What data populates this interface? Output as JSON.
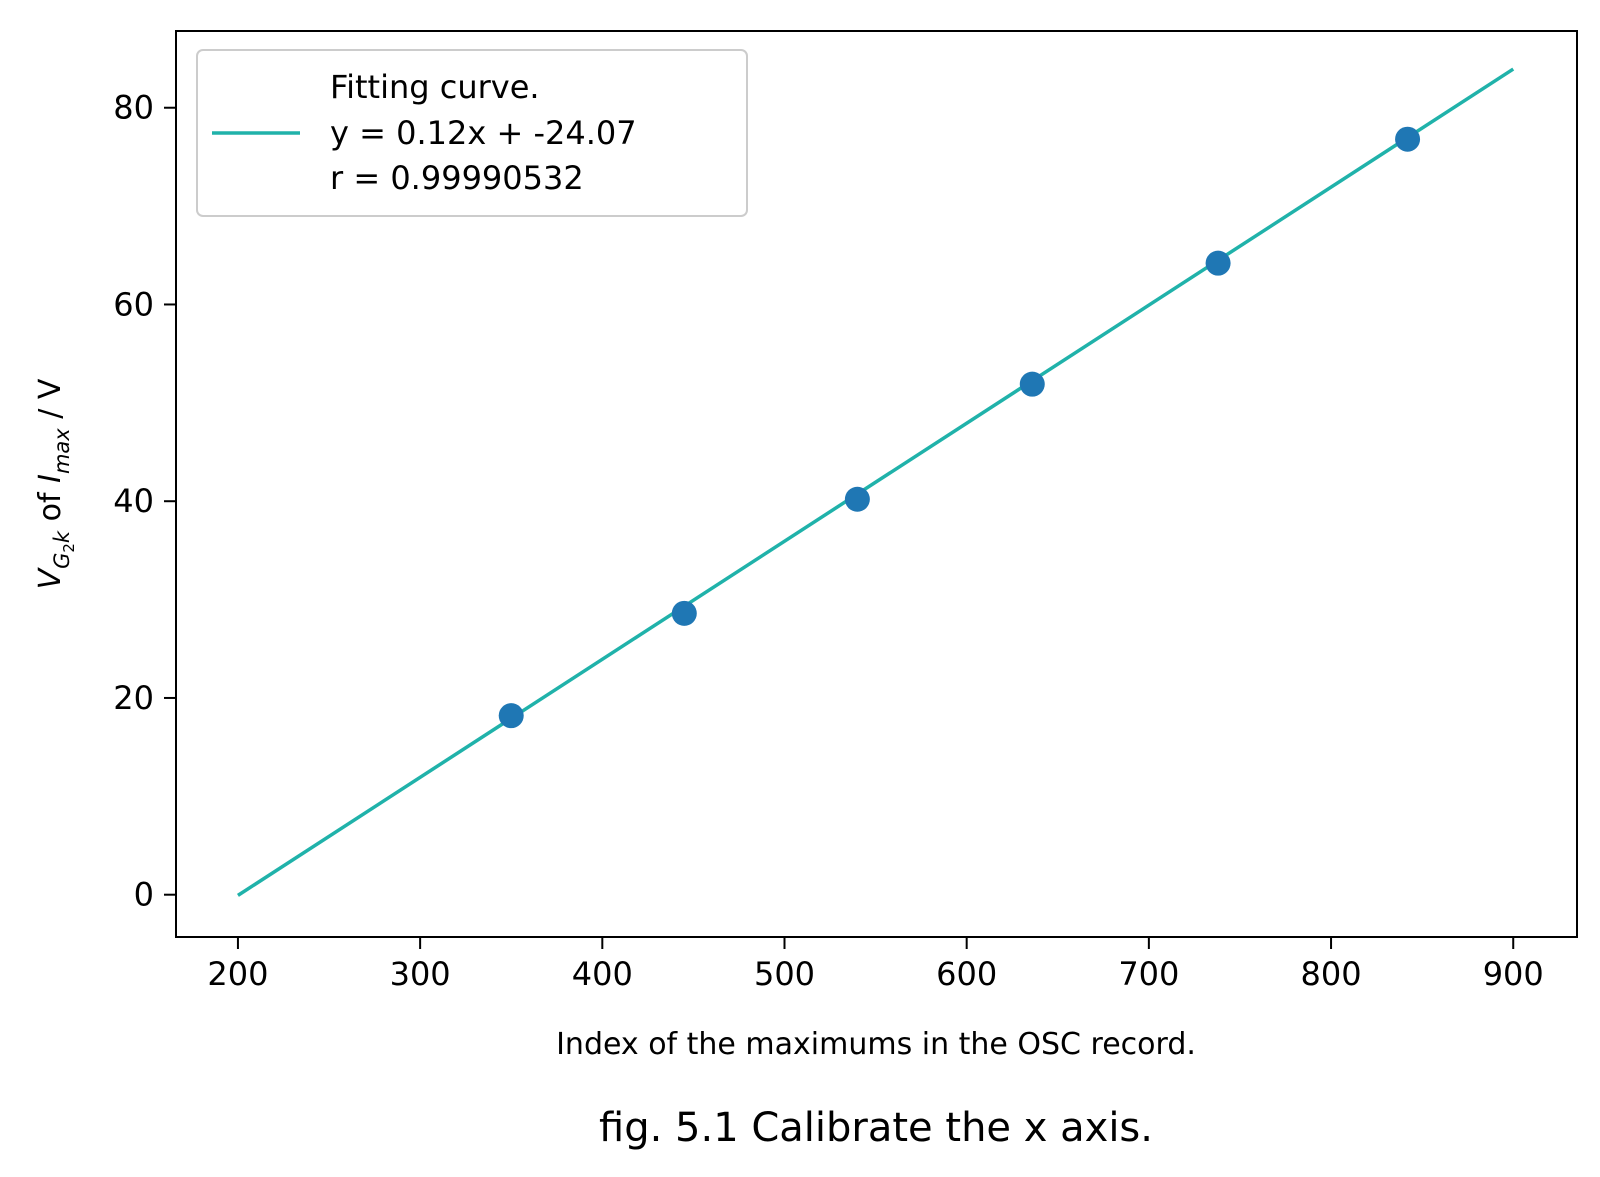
{
  "chart_data": {
    "type": "scatter",
    "xlabel": "Index of the maximums in the OSC record.",
    "ylabel": {
      "base": "V",
      "sub_base": "G",
      "sub_sub": "2",
      "sub_tail": "k",
      "middle": " of ",
      "var2": "I",
      "var2_sub": "max",
      "unit": " / V"
    },
    "caption": "fig. 5.1 Calibrate the x axis.",
    "xlim": [
      166,
      935
    ],
    "ylim": [
      -4.3,
      87.8
    ],
    "xticks": [
      200,
      300,
      400,
      500,
      600,
      700,
      800,
      900
    ],
    "yticks": [
      0,
      20,
      40,
      60,
      80
    ],
    "grid": false,
    "legend_position": "top-left",
    "legend": {
      "lines": [
        "Fitting curve.",
        "y = 0.12x + -24.07",
        "r = 0.99990532"
      ]
    },
    "series": [
      {
        "kind": "points",
        "color": "#1f77b4",
        "x": [
          350,
          445,
          540,
          636,
          738,
          842
        ],
        "y": [
          18.2,
          28.6,
          40.2,
          51.9,
          64.2,
          76.8
        ]
      },
      {
        "kind": "fit",
        "color": "#20b2aa",
        "slope": 0.12,
        "intercept": -24.07,
        "x_range": [
          200,
          900
        ]
      }
    ]
  }
}
